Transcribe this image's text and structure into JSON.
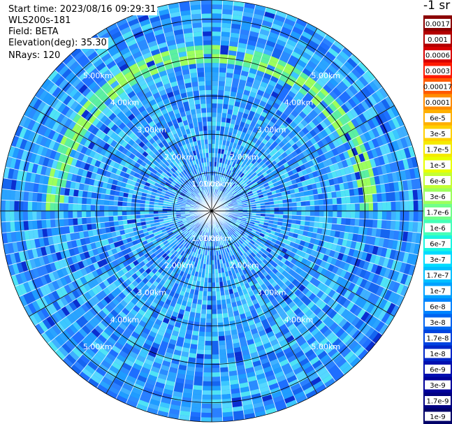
{
  "info": {
    "start_time": "Start time: 2023/08/16 09:29:31",
    "instrument": "WLS200s-181",
    "field": "Field: BETA",
    "elevation": "Elevation(deg): 35.30",
    "nrays": "NRays: 120"
  },
  "chart_data": {
    "type": "heatmap",
    "projection": "polar-ppi",
    "field": "BETA",
    "nrays": 120,
    "elevation_deg": 35.3,
    "range_rings_km": [
      "1.00km",
      "2.00km",
      "3.00km",
      "4.00km",
      "5.00km"
    ],
    "range_max_km": 5.5,
    "spokes_deg": [
      0,
      30,
      60,
      90,
      120,
      150,
      180,
      210,
      240,
      270,
      300,
      330
    ],
    "colorbar": {
      "unit": "-1 sr",
      "ticks": [
        "0.0017",
        "0.001",
        "0.0006",
        "0.0003",
        "0.00017",
        "0.0001",
        "6e-5",
        "3e-5",
        "1.7e-5",
        "1e-5",
        "6e-6",
        "3e-6",
        "1.7e-6",
        "1e-6",
        "6e-7",
        "3e-7",
        "1.7e-7",
        "1e-7",
        "6e-8",
        "3e-8",
        "1.7e-8",
        "1e-8",
        "6e-9",
        "3e-9",
        "1.7e-9",
        "1e-9"
      ],
      "colors": [
        "#8b0000",
        "#b30000",
        "#d80000",
        "#ff1a00",
        "#ff5a00",
        "#ff8c00",
        "#ffb000",
        "#ffd000",
        "#f5ea00",
        "#e8ff00",
        "#c4ff33",
        "#9cff5c",
        "#70ff8a",
        "#44ffb8",
        "#1af5e0",
        "#00dcff",
        "#00c0ff",
        "#00a2ff",
        "#0084ff",
        "#0064f0",
        "#0044e0",
        "#0026c8",
        "#0010b0",
        "#00009a",
        "#000082",
        "#000068"
      ]
    },
    "feature": {
      "description": "enhanced backscatter arc",
      "range_km": [
        3.9,
        4.2
      ],
      "az_deg": [
        270,
        450
      ],
      "value_level": "1e-6 to 3e-7"
    }
  }
}
